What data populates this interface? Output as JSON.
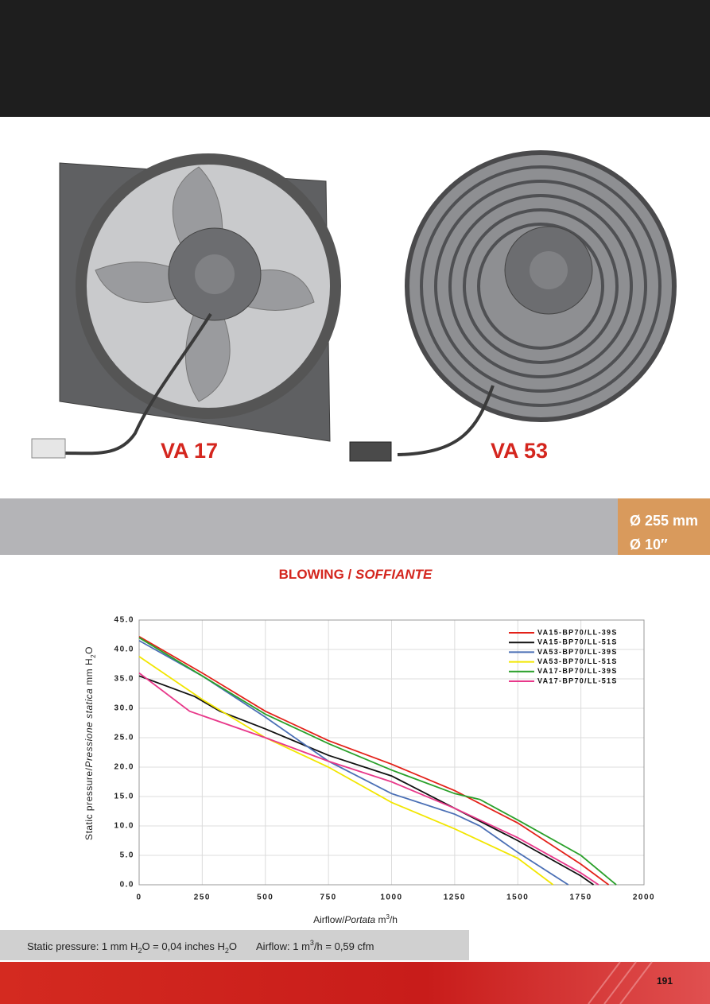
{
  "products": [
    "VA 17",
    "VA 53"
  ],
  "size": [
    "Ø 255 mm",
    "Ø 10″"
  ],
  "footer": {
    "pressure": [
      "Static pressure: 1 mm H",
      "2",
      "O = 0,04 inches H",
      "2",
      "O"
    ],
    "airflow": [
      "Airflow: 1 m",
      "3",
      "/h = 0,59 cfm"
    ]
  },
  "page_number": "191",
  "chart_data": {
    "type": "line",
    "title": [
      "BLOWING / ",
      "SOFFIANTE"
    ],
    "ylabel": [
      "Static pressure/",
      "Pressione statica",
      " mm H",
      "2",
      "O"
    ],
    "xlabel": [
      "Airflow/",
      "Portata",
      " m",
      "3",
      "/h"
    ],
    "xlim": [
      0,
      2000
    ],
    "xticks": [
      0,
      250,
      500,
      750,
      1000,
      1250,
      1500,
      1750,
      2000
    ],
    "ylim": [
      0,
      45
    ],
    "yticks": [
      {
        "value": 0,
        "label": "0.0"
      },
      {
        "value": 5,
        "label": "5.0"
      },
      {
        "value": 10,
        "label": "10.0"
      },
      {
        "value": 15,
        "label": "15.0"
      },
      {
        "value": 20,
        "label": "20.0"
      },
      {
        "value": 25,
        "label": "25.0"
      },
      {
        "value": 30,
        "label": "30.0"
      },
      {
        "value": 35,
        "label": "35.0"
      },
      {
        "value": 40,
        "label": "40.0"
      },
      {
        "value": 45,
        "label": "45.0"
      }
    ],
    "grid": true,
    "legend": "upper right",
    "series": [
      {
        "name": "VA15-BP70/LL-39S",
        "color": "#e32119",
        "x": [
          0,
          250,
          500,
          750,
          1000,
          1250,
          1500,
          1750,
          1860
        ],
        "values": [
          42.2,
          36,
          29.5,
          24.5,
          20.5,
          16,
          10.5,
          3.5,
          0
        ]
      },
      {
        "name": "VA15-BP70/LL-51S",
        "color": "#111111",
        "x": [
          0,
          220,
          320,
          500,
          750,
          1000,
          1250,
          1500,
          1750,
          1800
        ],
        "values": [
          35.5,
          32,
          29.5,
          26.5,
          22,
          18.5,
          13,
          7.5,
          1.5,
          0
        ]
      },
      {
        "name": "VA53-BP70/LL-39S",
        "color": "#4a6fb5",
        "x": [
          0,
          250,
          500,
          750,
          1000,
          1250,
          1350,
          1500,
          1700
        ],
        "values": [
          41.5,
          35.5,
          28.5,
          21,
          15.5,
          12,
          10,
          5.5,
          0
        ]
      },
      {
        "name": "VA53-BP70/LL-51S",
        "color": "#f2e600",
        "x": [
          0,
          250,
          500,
          750,
          1000,
          1250,
          1500,
          1640
        ],
        "values": [
          38.8,
          31.5,
          25,
          20,
          14,
          9.5,
          4.5,
          0
        ]
      },
      {
        "name": "VA17-BP70/LL-39S",
        "color": "#2aa02a",
        "x": [
          0,
          250,
          500,
          750,
          1000,
          1250,
          1350,
          1500,
          1750,
          1890
        ],
        "values": [
          42,
          35.5,
          29,
          24,
          19.5,
          15.5,
          14.5,
          11,
          5,
          0
        ]
      },
      {
        "name": "VA17-BP70/LL-51S",
        "color": "#e8388a",
        "x": [
          0,
          200,
          500,
          750,
          1000,
          1250,
          1500,
          1750,
          1820
        ],
        "values": [
          36,
          29.5,
          25,
          21,
          17.5,
          13,
          8,
          2,
          0
        ]
      }
    ]
  }
}
